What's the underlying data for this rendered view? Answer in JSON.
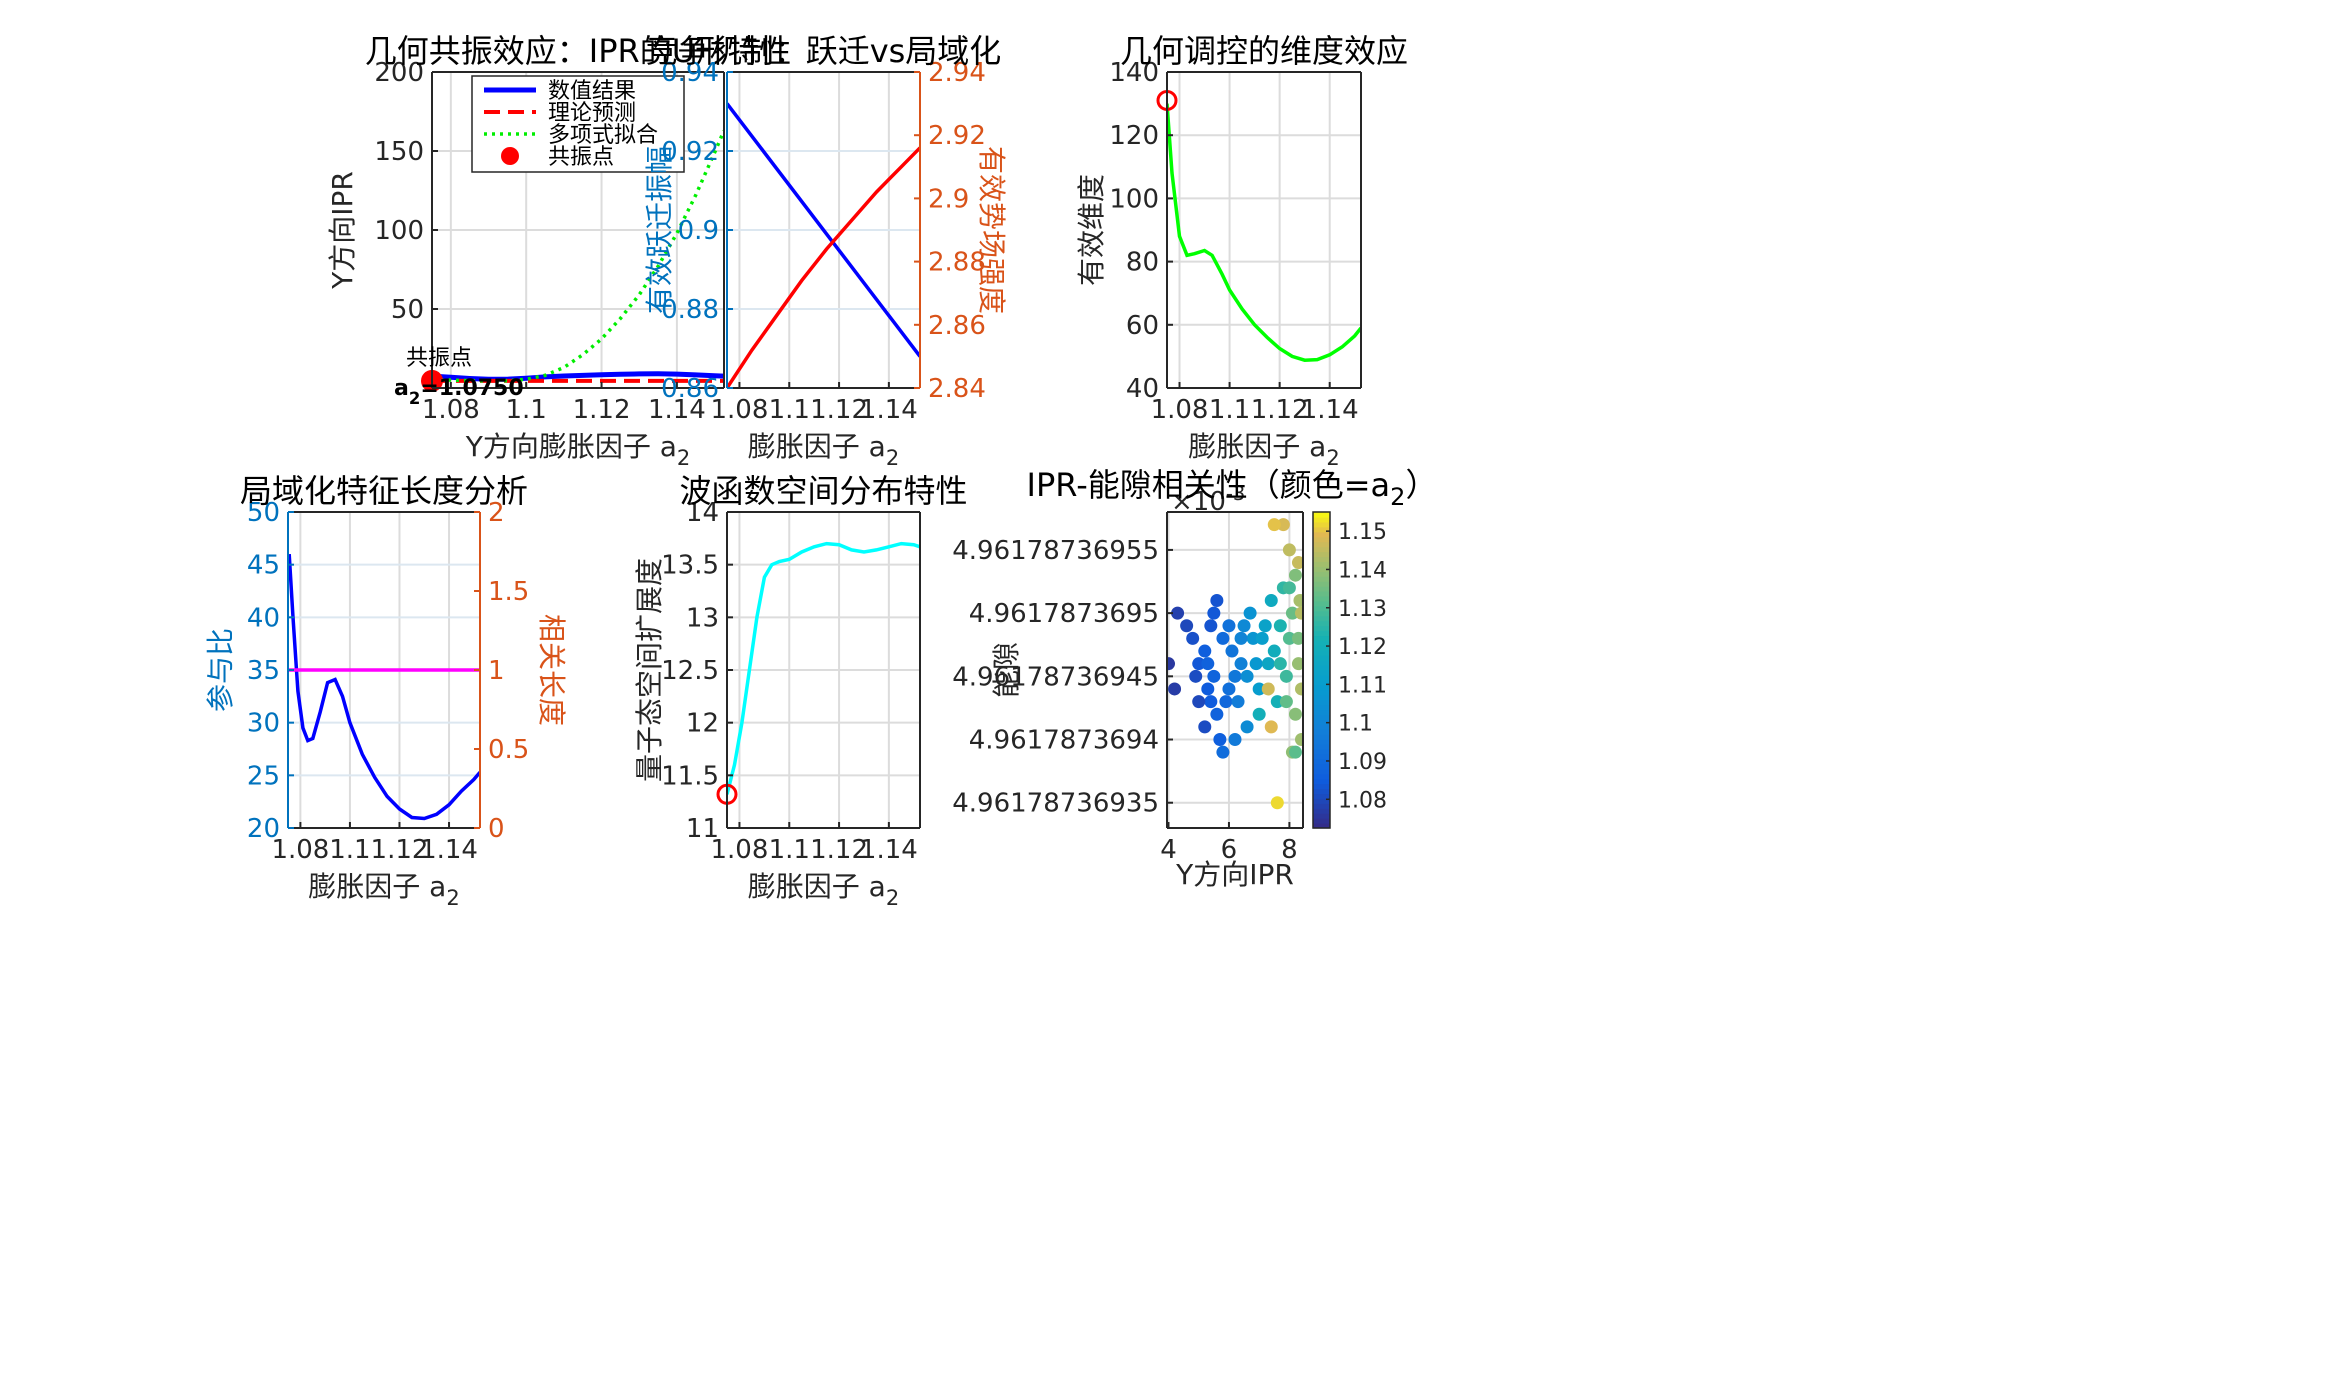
{
  "chart_data": [
    {
      "type": "line",
      "title": "几何共振效应：IPR的U形特性",
      "xlabel": "Y方向膨胀因子 a",
      "xlabel_sub": "2",
      "ylabel": "Y方向IPR",
      "xlim": [
        1.075,
        1.1525
      ],
      "ylim": [
        0,
        200
      ],
      "xticks": [
        1.08,
        1.1,
        1.12,
        1.14
      ],
      "xticklabels": [
        "1.08",
        "1.1",
        "1.12",
        "1.14"
      ],
      "yticks": [
        0,
        50,
        100,
        150,
        200
      ],
      "yticklabels": [
        "",
        "50",
        "100",
        "150",
        "200"
      ],
      "grid": true,
      "legend_position": "top-center",
      "series": [
        {
          "name": "数值结果",
          "color": "#0000FF",
          "style": "solid",
          "x": [
            1.075,
            1.08,
            1.085,
            1.09,
            1.095,
            1.1,
            1.105,
            1.11,
            1.115,
            1.12,
            1.125,
            1.13,
            1.135,
            1.14,
            1.145,
            1.15,
            1.1525
          ],
          "y": [
            7.5,
            6.8,
            6.0,
            5.5,
            5.6,
            6.2,
            7.0,
            7.6,
            8.0,
            8.4,
            8.7,
            8.9,
            9.0,
            8.8,
            8.3,
            7.8,
            7.5
          ]
        },
        {
          "name": "理论预测",
          "color": "#FF0000",
          "style": "dashed",
          "x": [
            1.075,
            1.1525
          ],
          "y": [
            4.5,
            4.5
          ]
        },
        {
          "name": "多项式拟合",
          "color": "#00EE00",
          "style": "dotted",
          "x": [
            1.075,
            1.08,
            1.085,
            1.09,
            1.095,
            1.1,
            1.105,
            1.11,
            1.115,
            1.12,
            1.125,
            1.13,
            1.135,
            1.14,
            1.145,
            1.15,
            1.1525
          ],
          "y": [
            5.5,
            5.0,
            4.6,
            4.5,
            4.6,
            5.5,
            8.0,
            13.0,
            21.0,
            31.0,
            44.0,
            59.0,
            77.0,
            98.0,
            122.0,
            149.0,
            163.0
          ]
        }
      ],
      "markers": [
        {
          "name": "共振点",
          "x": 1.075,
          "y": 4.5,
          "color": "#FF0000"
        }
      ],
      "annotation": {
        "line1": "共振点",
        "line2": "a",
        "line2_sub": "2",
        "line2_rest": "=1.0750"
      }
    },
    {
      "type": "line",
      "title": "竞争机制：跃迁vs局域化",
      "xlabel": "膨胀因子 a",
      "xlabel_sub": "2",
      "ylabel": "有效跃迁振幅",
      "ylabel_right": "有效势场强度",
      "xlim": [
        1.075,
        1.1525
      ],
      "ylim": [
        0.86,
        0.94
      ],
      "ylim_right": [
        2.84,
        2.94
      ],
      "xticks": [
        1.08,
        1.1,
        1.12,
        1.14
      ],
      "xticklabels": [
        "1.08",
        "1.1",
        "1.12",
        "1.14"
      ],
      "yticks": [
        0.86,
        0.88,
        0.9,
        0.92,
        0.94
      ],
      "yticklabels": [
        "0.86",
        "0.88",
        "0.9",
        "0.92",
        "0.94"
      ],
      "yticks_right": [
        2.84,
        2.86,
        2.88,
        2.9,
        2.92,
        2.94
      ],
      "yticklabels_right": [
        "2.84",
        "2.86",
        "2.88",
        "2.9",
        "2.92",
        "2.94"
      ],
      "left_axis_color": "#0072BD",
      "right_axis_color": "#D95319",
      "grid": true,
      "series": [
        {
          "axis": "left",
          "color": "#0000FF",
          "x": [
            1.075,
            1.1525
          ],
          "y": [
            0.932,
            0.868
          ]
        },
        {
          "axis": "right",
          "color": "#FF0000",
          "x": [
            1.075,
            1.085,
            1.095,
            1.105,
            1.115,
            1.125,
            1.135,
            1.145,
            1.1525
          ],
          "y": [
            2.84,
            2.852,
            2.863,
            2.874,
            2.884,
            2.893,
            2.902,
            2.91,
            2.916
          ]
        }
      ]
    },
    {
      "type": "line",
      "title": "几何调控的维度效应",
      "xlabel": "膨胀因子 a",
      "xlabel_sub": "2",
      "ylabel": "有效维度",
      "xlim": [
        1.075,
        1.1525
      ],
      "ylim": [
        40,
        140
      ],
      "xticks": [
        1.08,
        1.1,
        1.12,
        1.14
      ],
      "xticklabels": [
        "1.08",
        "1.1",
        "1.12",
        "1.14"
      ],
      "yticks": [
        40,
        60,
        80,
        100,
        120,
        140
      ],
      "yticklabels": [
        "40",
        "60",
        "80",
        "100",
        "120",
        "140"
      ],
      "grid": true,
      "series": [
        {
          "color": "#00FF00",
          "x": [
            1.075,
            1.077,
            1.08,
            1.083,
            1.086,
            1.09,
            1.093,
            1.097,
            1.1,
            1.105,
            1.11,
            1.115,
            1.12,
            1.125,
            1.13,
            1.135,
            1.14,
            1.145,
            1.15,
            1.1525
          ],
          "y": [
            130,
            108,
            88,
            82,
            82.5,
            83.5,
            82,
            76,
            71,
            65,
            60,
            56,
            52.5,
            50,
            48.8,
            49,
            50.5,
            53,
            56.5,
            59
          ]
        }
      ],
      "markers": [
        {
          "x": 1.075,
          "y": 131,
          "color": "#FF0000",
          "style": "open-circle"
        }
      ]
    },
    {
      "type": "line",
      "title": "局域化特征长度分析",
      "xlabel": "膨胀因子 a",
      "xlabel_sub": "2",
      "ylabel": "参与比",
      "ylabel_right": "相关长度",
      "xlim": [
        1.075,
        1.1525
      ],
      "ylim": [
        20,
        50
      ],
      "ylim_right": [
        0,
        2
      ],
      "xticks": [
        1.08,
        1.1,
        1.12,
        1.14
      ],
      "xticklabels": [
        "1.08",
        "1.1",
        "1.12",
        "1.14"
      ],
      "yticks": [
        20,
        25,
        30,
        35,
        40,
        45,
        50
      ],
      "yticklabels": [
        "20",
        "25",
        "30",
        "35",
        "40",
        "45",
        "50"
      ],
      "yticks_right": [
        0,
        0.5,
        1,
        1.5,
        2
      ],
      "yticklabels_right": [
        "0",
        "0.5",
        "1",
        "1.5",
        "2"
      ],
      "left_axis_color": "#0072BD",
      "right_axis_color": "#D95319",
      "grid": true,
      "series": [
        {
          "axis": "left",
          "color": "#0000FF",
          "x": [
            1.0755,
            1.077,
            1.079,
            1.081,
            1.083,
            1.085,
            1.088,
            1.091,
            1.094,
            1.097,
            1.1,
            1.105,
            1.11,
            1.115,
            1.12,
            1.125,
            1.13,
            1.135,
            1.14,
            1.145,
            1.15,
            1.1525
          ],
          "y": [
            46,
            40,
            33,
            29.5,
            28.3,
            28.5,
            31,
            33.8,
            34.1,
            32.5,
            30,
            27,
            24.8,
            23,
            21.8,
            21.0,
            20.9,
            21.3,
            22.2,
            23.5,
            24.6,
            25.3
          ]
        },
        {
          "axis": "right",
          "color": "#FF00FF",
          "x": [
            1.075,
            1.1525
          ],
          "y": [
            1,
            1
          ]
        }
      ]
    },
    {
      "type": "line",
      "title": "波函数空间分布特性",
      "xlabel": "膨胀因子 a",
      "xlabel_sub": "2",
      "ylabel": "量子态空间扩展度",
      "xlim": [
        1.075,
        1.1525
      ],
      "ylim": [
        11,
        14
      ],
      "xticks": [
        1.08,
        1.1,
        1.12,
        1.14
      ],
      "xticklabels": [
        "1.08",
        "1.1",
        "1.12",
        "1.14"
      ],
      "yticks": [
        11,
        11.5,
        12,
        12.5,
        13,
        13.5,
        14
      ],
      "yticklabels": [
        "11",
        "11.5",
        "12",
        "12.5",
        "13",
        "13.5",
        "14"
      ],
      "grid": true,
      "series": [
        {
          "color": "#00FFFF",
          "x": [
            1.075,
            1.078,
            1.081,
            1.084,
            1.087,
            1.09,
            1.093,
            1.096,
            1.1,
            1.105,
            1.11,
            1.115,
            1.12,
            1.125,
            1.13,
            1.135,
            1.14,
            1.145,
            1.15,
            1.1525
          ],
          "y": [
            11.32,
            11.6,
            12.0,
            12.5,
            13.0,
            13.38,
            13.5,
            13.53,
            13.55,
            13.62,
            13.67,
            13.7,
            13.69,
            13.64,
            13.62,
            13.64,
            13.67,
            13.7,
            13.69,
            13.67
          ]
        }
      ],
      "markers": [
        {
          "x": 1.075,
          "y": 11.32,
          "color": "#FF0000",
          "style": "open-circle"
        }
      ]
    },
    {
      "type": "scatter",
      "title": "IPR-能隙相关性（颜色=a",
      "title_sub": "2",
      "title_rest": "）",
      "xlabel": "Y方向IPR",
      "ylabel": "能隙",
      "exponent_label": "×10",
      "exponent_value": "-3",
      "xlim": [
        3.95,
        8.45
      ],
      "ylim": [
        4.96178736933,
        4.96178736958
      ],
      "xticks": [
        4,
        6,
        8
      ],
      "xticklabels": [
        "4",
        "6",
        "8"
      ],
      "yticks": [
        4.96178736935,
        4.9617873694,
        4.96178736945,
        4.9617873695,
        4.96178736955
      ],
      "yticklabels": [
        "4.96178736935",
        "4.9617873694",
        "4.96178736945",
        "4.9617873695",
        "4.96178736955"
      ],
      "colorbar": {
        "range": [
          1.0725,
          1.155
        ],
        "ticks": [
          1.08,
          1.09,
          1.1,
          1.11,
          1.12,
          1.13,
          1.14,
          1.15
        ],
        "ticklabels": [
          "1.08",
          "1.09",
          "1.1",
          "1.11",
          "1.12",
          "1.13",
          "1.14",
          "1.15"
        ],
        "colormap": "parula"
      },
      "points": [
        {
          "x": 4.3,
          "y": 4.9617873695,
          "c": 1.078
        },
        {
          "x": 4.0,
          "y": 4.96178736946,
          "c": 1.076
        },
        {
          "x": 4.2,
          "y": 4.96178736944,
          "c": 1.077
        },
        {
          "x": 4.6,
          "y": 4.96178736949,
          "c": 1.08
        },
        {
          "x": 4.8,
          "y": 4.96178736948,
          "c": 1.082
        },
        {
          "x": 5.0,
          "y": 4.96178736946,
          "c": 1.084
        },
        {
          "x": 5.2,
          "y": 4.96178736947,
          "c": 1.086
        },
        {
          "x": 5.3,
          "y": 4.96178736944,
          "c": 1.085
        },
        {
          "x": 5.5,
          "y": 4.96178736945,
          "c": 1.088
        },
        {
          "x": 5.6,
          "y": 4.96178736942,
          "c": 1.087
        },
        {
          "x": 5.4,
          "y": 4.96178736949,
          "c": 1.083
        },
        {
          "x": 5.8,
          "y": 4.96178736948,
          "c": 1.09
        },
        {
          "x": 5.9,
          "y": 4.96178736943,
          "c": 1.089
        },
        {
          "x": 5.2,
          "y": 4.96178736941,
          "c": 1.081
        },
        {
          "x": 5.7,
          "y": 4.9617873694,
          "c": 1.086
        },
        {
          "x": 6.1,
          "y": 4.96178736947,
          "c": 1.094
        },
        {
          "x": 6.2,
          "y": 4.96178736945,
          "c": 1.095
        },
        {
          "x": 6.0,
          "y": 4.96178736944,
          "c": 1.092
        },
        {
          "x": 6.3,
          "y": 4.96178736943,
          "c": 1.097
        },
        {
          "x": 6.4,
          "y": 4.96178736946,
          "c": 1.099
        },
        {
          "x": 5.5,
          "y": 4.9617873695,
          "c": 1.084
        },
        {
          "x": 5.6,
          "y": 4.96178736951,
          "c": 1.083
        },
        {
          "x": 6.5,
          "y": 4.96178736949,
          "c": 1.102
        },
        {
          "x": 6.6,
          "y": 4.96178736945,
          "c": 1.104
        },
        {
          "x": 6.8,
          "y": 4.96178736948,
          "c": 1.107
        },
        {
          "x": 6.9,
          "y": 4.96178736946,
          "c": 1.108
        },
        {
          "x": 7.0,
          "y": 4.96178736944,
          "c": 1.11
        },
        {
          "x": 6.7,
          "y": 4.9617873695,
          "c": 1.106
        },
        {
          "x": 7.2,
          "y": 4.96178736949,
          "c": 1.113
        },
        {
          "x": 7.3,
          "y": 4.96178736946,
          "c": 1.115
        },
        {
          "x": 7.4,
          "y": 4.96178736951,
          "c": 1.117
        },
        {
          "x": 7.5,
          "y": 4.96178736947,
          "c": 1.119
        },
        {
          "x": 7.6,
          "y": 4.96178736943,
          "c": 1.121
        },
        {
          "x": 7.7,
          "y": 4.96178736949,
          "c": 1.123
        },
        {
          "x": 7.8,
          "y": 4.96178736952,
          "c": 1.126
        },
        {
          "x": 7.9,
          "y": 4.96178736945,
          "c": 1.128
        },
        {
          "x": 8.0,
          "y": 4.96178736948,
          "c": 1.131
        },
        {
          "x": 8.1,
          "y": 4.9617873695,
          "c": 1.134
        },
        {
          "x": 8.2,
          "y": 4.96178736953,
          "c": 1.137
        },
        {
          "x": 8.3,
          "y": 4.96178736946,
          "c": 1.14
        },
        {
          "x": 8.4,
          "y": 4.96178736944,
          "c": 1.143
        },
        {
          "x": 8.35,
          "y": 4.96178736951,
          "c": 1.142
        },
        {
          "x": 8.2,
          "y": 4.96178736942,
          "c": 1.138
        },
        {
          "x": 8.0,
          "y": 4.96178736955,
          "c": 1.145
        },
        {
          "x": 7.8,
          "y": 4.96178736957,
          "c": 1.148
        },
        {
          "x": 7.5,
          "y": 4.96178736957,
          "c": 1.15
        },
        {
          "x": 8.3,
          "y": 4.96178736954,
          "c": 1.146
        },
        {
          "x": 8.4,
          "y": 4.9617873694,
          "c": 1.141
        },
        {
          "x": 8.1,
          "y": 4.96178736939,
          "c": 1.139
        },
        {
          "x": 7.6,
          "y": 4.96178736935,
          "c": 1.152
        },
        {
          "x": 7.4,
          "y": 4.96178736941,
          "c": 1.149
        },
        {
          "x": 7.0,
          "y": 4.96178736942,
          "c": 1.12
        },
        {
          "x": 6.6,
          "y": 4.96178736941,
          "c": 1.103
        },
        {
          "x": 6.2,
          "y": 4.9617873694,
          "c": 1.096
        },
        {
          "x": 5.8,
          "y": 4.96178736939,
          "c": 1.091
        },
        {
          "x": 5.4,
          "y": 4.96178736943,
          "c": 1.085
        },
        {
          "x": 5.0,
          "y": 4.96178736943,
          "c": 1.08
        },
        {
          "x": 4.9,
          "y": 4.96178736945,
          "c": 1.081
        },
        {
          "x": 5.3,
          "y": 4.96178736946,
          "c": 1.087
        },
        {
          "x": 6.0,
          "y": 4.96178736949,
          "c": 1.093
        },
        {
          "x": 7.9,
          "y": 4.96178736943,
          "c": 1.133
        },
        {
          "x": 8.3,
          "y": 4.96178736948,
          "c": 1.136
        },
        {
          "x": 8.4,
          "y": 4.9617873695,
          "c": 1.144
        },
        {
          "x": 7.7,
          "y": 4.96178736946,
          "c": 1.125
        },
        {
          "x": 7.3,
          "y": 4.96178736944,
          "c": 1.147
        },
        {
          "x": 8.2,
          "y": 4.96178736939,
          "c": 1.132
        },
        {
          "x": 8.0,
          "y": 4.96178736952,
          "c": 1.129
        },
        {
          "x": 7.1,
          "y": 4.96178736948,
          "c": 1.111
        },
        {
          "x": 6.4,
          "y": 4.96178736948,
          "c": 1.1
        }
      ]
    }
  ]
}
